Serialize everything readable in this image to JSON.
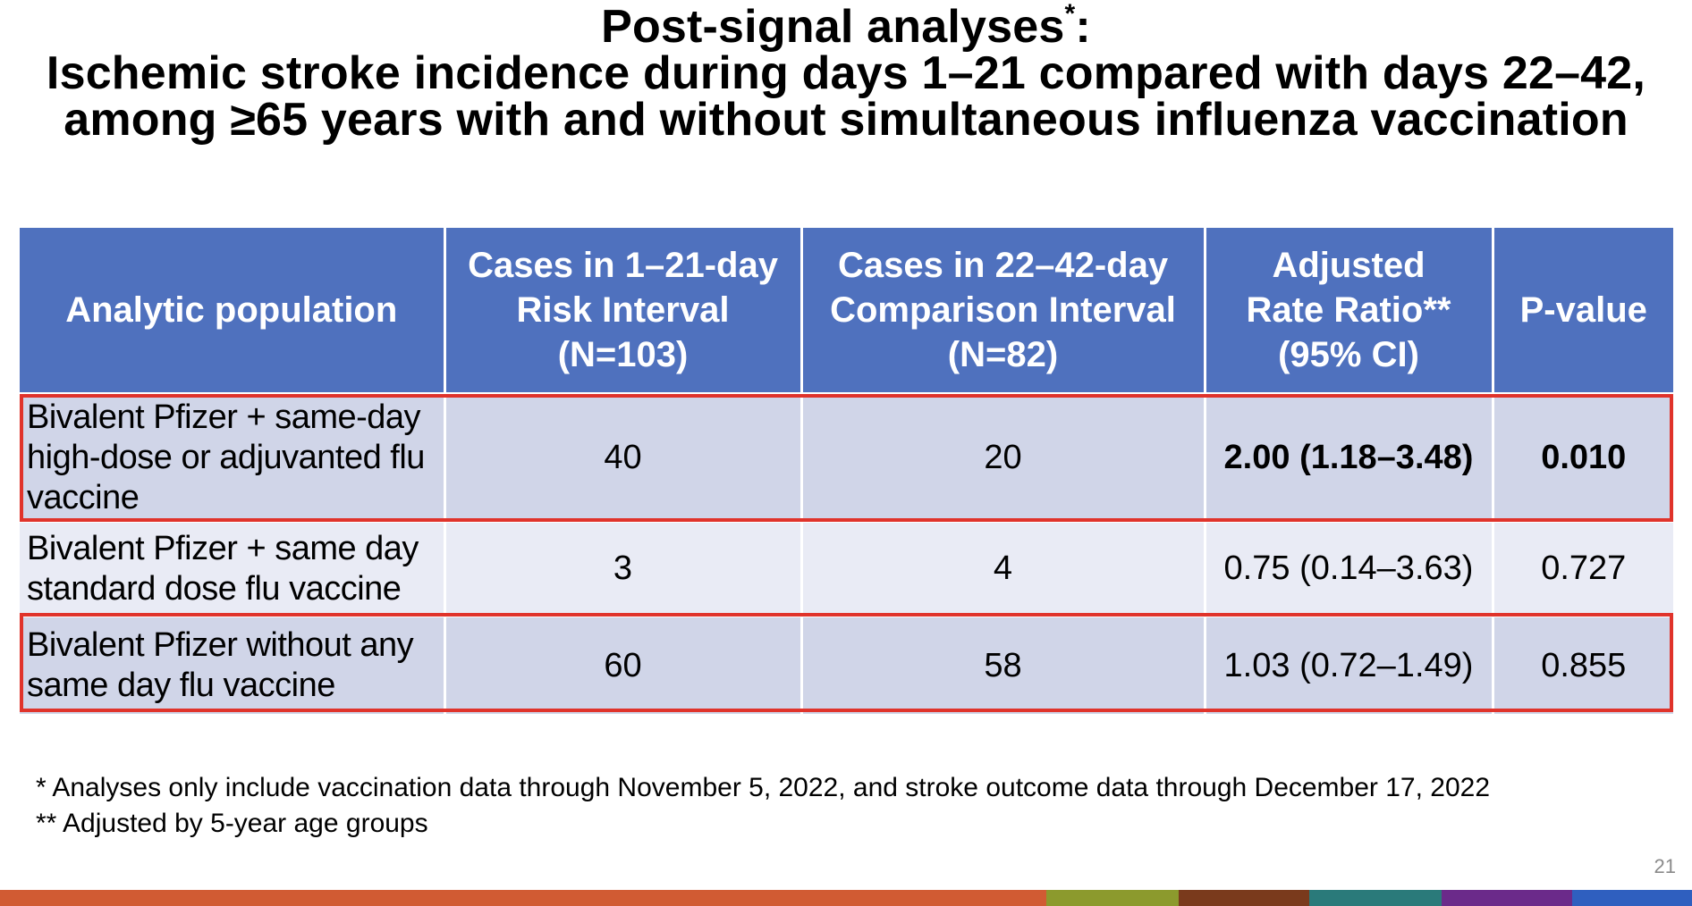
{
  "title": {
    "line1_main": "Post-signal analyses",
    "line1_sup": "*",
    "line1_colon": ":",
    "line2": "Ischemic stroke incidence during days 1–21 compared with days 22–42,",
    "line3": "among ≥65 years with and without simultaneous influenza vaccination"
  },
  "table": {
    "headers": [
      [
        "Analytic population"
      ],
      [
        "Cases in 1–21-day",
        "Risk Interval",
        "(N=103)"
      ],
      [
        "Cases in 22–42-day",
        "Comparison Interval",
        "(N=82)"
      ],
      [
        "Adjusted",
        "Rate Ratio**",
        "(95% CI)"
      ],
      [
        "P-value"
      ]
    ],
    "rows": [
      {
        "population": [
          "Bivalent Pfizer + same-day",
          "high-dose or adjuvanted flu",
          "vaccine"
        ],
        "risk": "40",
        "comparison": "20",
        "rr": "2.00 (1.18–3.48)",
        "p": "0.010",
        "highlighted": true
      },
      {
        "population": [
          "Bivalent Pfizer + same day",
          "standard dose flu vaccine"
        ],
        "risk": "3",
        "comparison": "4",
        "rr": "0.75 (0.14–3.63)",
        "p": "0.727",
        "highlighted": false
      },
      {
        "population": [
          "Bivalent Pfizer without any",
          "same day flu vaccine"
        ],
        "risk": "60",
        "comparison": "58",
        "rr": "1.03 (0.72–1.49)",
        "p": "0.855",
        "highlighted": true
      }
    ]
  },
  "footnotes": [
    "* Analyses only include vaccination data through November 5, 2022, and stroke outcome data through December 17, 2022",
    "** Adjusted by 5-year age groups"
  ],
  "slide_number": "21",
  "colors": {
    "header_bg": "#4f71be",
    "row_dark": "#d0d5e8",
    "row_light": "#e9ebf5",
    "highlight": "#e0332b",
    "bottom_bar": [
      "#d15b33",
      "#8c9a2d",
      "#7a3a1c",
      "#2a7a7a",
      "#6b2a8a",
      "#2f5fbf"
    ]
  }
}
